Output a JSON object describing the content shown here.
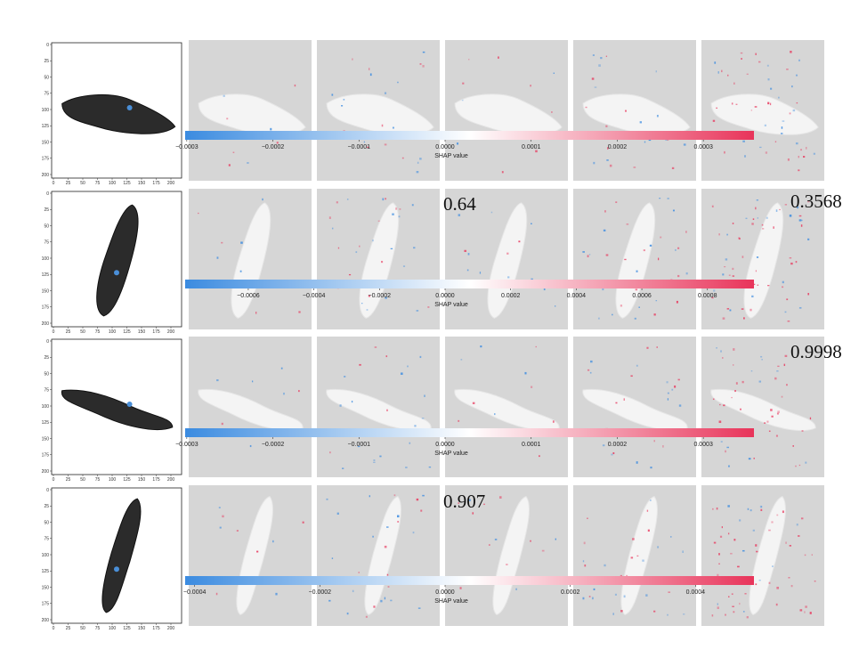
{
  "chart_data": {
    "type": "heatmap",
    "description_rows": [
      {
        "row": 1,
        "input_axis_ticks": {
          "y": [
            "0",
            "25",
            "50",
            "75",
            "100",
            "125",
            "150",
            "175",
            "200"
          ],
          "x": [
            "0",
            "25",
            "50",
            "75",
            "100",
            "125",
            "150",
            "175",
            "200"
          ]
        },
        "colorbar": {
          "ticks": [
            "−0.0003",
            "−0.0002",
            "−0.0001",
            "0.0000",
            "0.0001",
            "0.0002",
            "0.0003"
          ],
          "label": "SHAP value"
        },
        "score_labels": []
      },
      {
        "row": 2,
        "input_axis_ticks": {
          "y": [
            "0",
            "25",
            "50",
            "75",
            "100",
            "125",
            "150",
            "175",
            "200"
          ],
          "x": [
            "0",
            "25",
            "50",
            "75",
            "100",
            "125",
            "150",
            "175",
            "200"
          ]
        },
        "colorbar": {
          "ticks": [
            "−0.0006",
            "−0.0004",
            "−0.0002",
            "0.0000",
            "0.0002",
            "0.0004",
            "0.0006",
            "0.0008"
          ],
          "label": "SHAP value"
        },
        "score_labels": [
          "0.64",
          "0.3568"
        ]
      },
      {
        "row": 3,
        "input_axis_ticks": {
          "y": [
            "0",
            "25",
            "50",
            "75",
            "100",
            "125",
            "150",
            "175",
            "200"
          ],
          "x": [
            "0",
            "25",
            "50",
            "75",
            "100",
            "125",
            "150",
            "175",
            "200"
          ]
        },
        "colorbar": {
          "ticks": [
            "−0.0003",
            "−0.0002",
            "−0.0001",
            "0.0000",
            "0.0001",
            "0.0002",
            "0.0003"
          ],
          "label": "SHAP value"
        },
        "score_labels": [
          "0.9998"
        ]
      },
      {
        "row": 4,
        "input_axis_ticks": {
          "y": [
            "0",
            "25",
            "50",
            "75",
            "100",
            "125",
            "150",
            "175",
            "200"
          ],
          "x": [
            "0",
            "25",
            "50",
            "75",
            "100",
            "125",
            "150",
            "175",
            "200"
          ]
        },
        "colorbar": {
          "ticks": [
            "−0.0004",
            "−0.0002",
            "0.0000",
            "0.0002",
            "0.0004"
          ],
          "label": "SHAP value"
        },
        "score_labels": [
          "0.907"
        ]
      }
    ],
    "colors": {
      "negative": "#3b8be0",
      "neutral": "#ffffff",
      "positive": "#e8345a",
      "panel_bg": "#d6d6d6",
      "sandal": "#2b2b2b",
      "sandal_accent": "#4a8fd8"
    }
  }
}
